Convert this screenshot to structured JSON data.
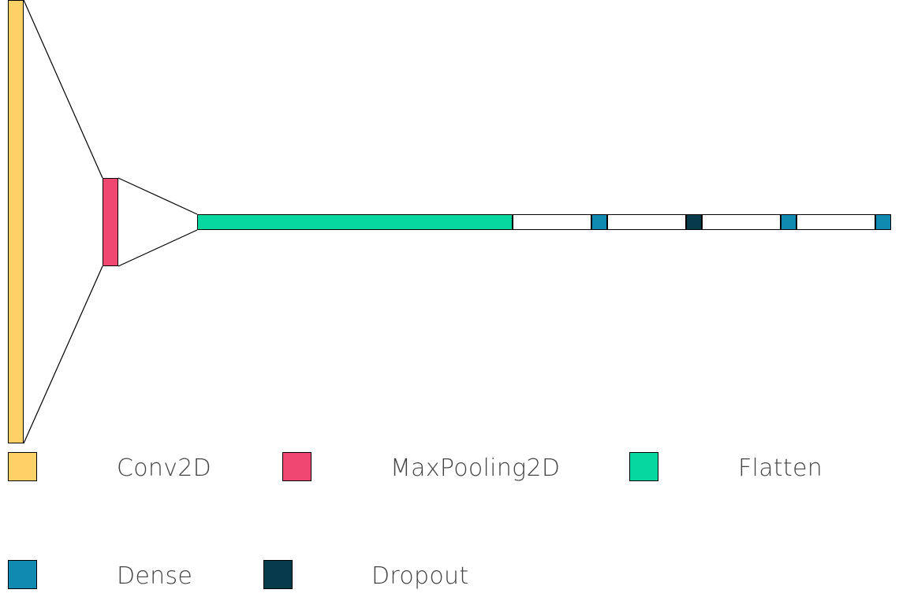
{
  "diagram": {
    "layer_colors": {
      "Conv2D": "#ffd166",
      "MaxPooling2D": "#ef476f",
      "Flatten": "#06d6a0",
      "Dense": "#118ab2",
      "Dropout": "#073b4c",
      "connector": "#ffffff",
      "outline": "#000000"
    },
    "layers": [
      {
        "type": "Conv2D"
      },
      {
        "type": "MaxPooling2D"
      },
      {
        "type": "Flatten"
      },
      {
        "type": "connector"
      },
      {
        "type": "Dense"
      },
      {
        "type": "connector"
      },
      {
        "type": "Dropout"
      },
      {
        "type": "connector"
      },
      {
        "type": "Dense"
      },
      {
        "type": "connector"
      },
      {
        "type": "Dense"
      }
    ]
  },
  "legend": {
    "items": [
      {
        "label": "Conv2D",
        "color": "#ffd166"
      },
      {
        "label": "MaxPooling2D",
        "color": "#ef476f"
      },
      {
        "label": "Flatten",
        "color": "#06d6a0"
      },
      {
        "label": "Dense",
        "color": "#118ab2"
      },
      {
        "label": "Dropout",
        "color": "#073b4c"
      }
    ]
  }
}
